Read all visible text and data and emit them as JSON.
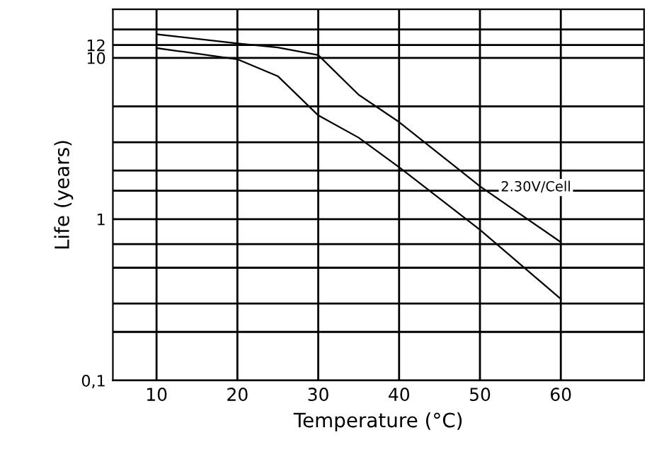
{
  "chart_data": {
    "type": "line",
    "xlabel": "Temperature (°C)",
    "ylabel": "Life (years)",
    "log": "y",
    "xlim": [
      4.6,
      70.3
    ],
    "xticks": [
      10,
      20,
      30,
      40,
      50,
      60
    ],
    "ylim": [
      0.1,
      20
    ],
    "yticks": [
      {
        "value": 0.1,
        "label": "0,1"
      },
      {
        "value": 0.2,
        "label": null
      },
      {
        "value": 0.3,
        "label": null
      },
      {
        "value": 0.5,
        "label": null
      },
      {
        "value": 0.7,
        "label": null
      },
      1,
      {
        "value": 1.5,
        "label": null
      },
      {
        "value": 2,
        "label": null
      },
      {
        "value": 3,
        "label": null
      },
      {
        "value": 5,
        "label": null
      },
      10,
      12,
      {
        "value": 15,
        "label": null
      }
    ],
    "grid": true,
    "series": [
      {
        "color": "#000000",
        "x": [
          10,
          20,
          25,
          30,
          35,
          40,
          50,
          60
        ],
        "values": [
          14,
          12.3,
          11.6,
          10.4,
          5.9,
          4.0,
          1.6,
          0.72
        ]
      },
      {
        "color": "#000000",
        "x": [
          10,
          20,
          25,
          30,
          35,
          40,
          50,
          60
        ],
        "values": [
          11.5,
          9.8,
          7.7,
          4.4,
          3.2,
          2.1,
          0.86,
          0.32
        ]
      }
    ],
    "annotations": [
      "2.30V/Cell"
    ]
  }
}
